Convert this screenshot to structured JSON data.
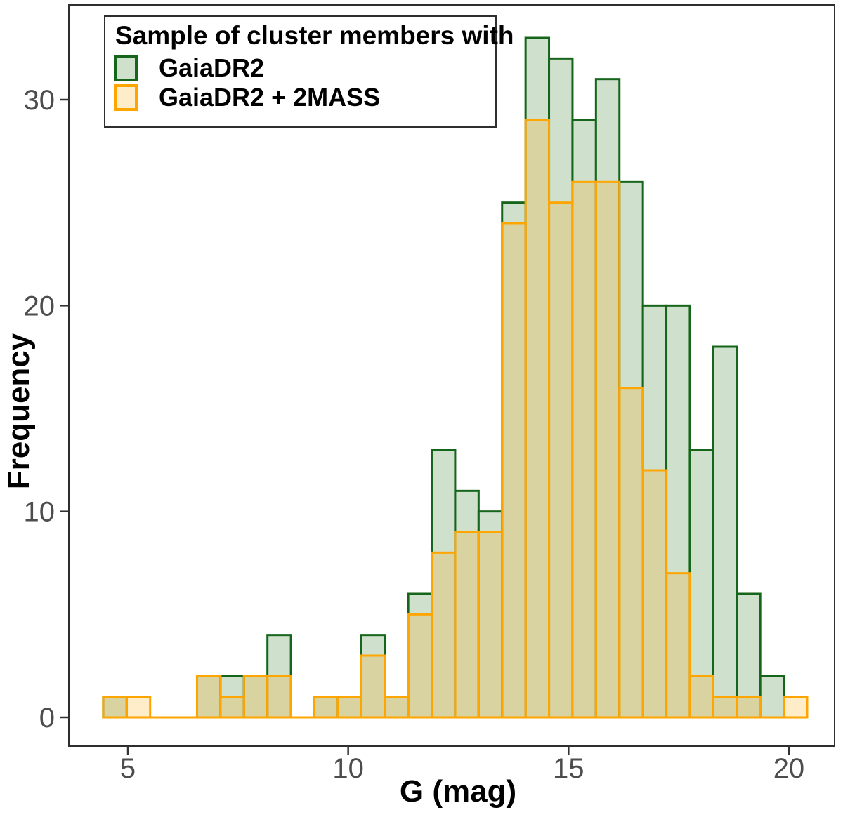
{
  "figure": {
    "legend": {
      "title": "Sample of cluster members with",
      "entries": [
        {
          "label": "GaiaDR2"
        },
        {
          "label": "GaiaDR2 + 2MASS"
        }
      ]
    },
    "x_axis": {
      "label": "G (mag)"
    },
    "y_axis": {
      "label": "Frequency"
    }
  },
  "chart_data": {
    "type": "histogram",
    "title": "",
    "xlabel": "G (mag)",
    "ylabel": "Frequency",
    "bin_start_mag": 4.44,
    "bin_width_mag": 0.5325,
    "n_bins": 30,
    "xlim": [
      4.0,
      21.0
    ],
    "ylim": [
      0,
      34.5
    ],
    "xticks": [
      5,
      10,
      15,
      20
    ],
    "yticks": [
      0,
      10,
      20,
      30
    ],
    "grid": false,
    "legend_position": "top-left",
    "legend_title": "Sample of cluster members with",
    "colors": {
      "green_fill": "#cfe0cd",
      "green_stroke": "#15651a",
      "orange_fill": "rgba(255,165,0,0.21)",
      "orange_stroke": "#ffa500",
      "axis_text": "#4d4d4d",
      "panel_border": "#2e2e2e"
    },
    "series": [
      {
        "name": "GaiaDR2",
        "values": [
          1,
          0,
          0,
          0,
          2,
          2,
          2,
          4,
          0,
          1,
          1,
          4,
          1,
          6,
          13,
          11,
          10,
          25,
          33,
          32,
          29,
          31,
          26,
          20,
          20,
          13,
          18,
          6,
          2,
          0
        ]
      },
      {
        "name": "GaiaDR2 + 2MASS",
        "values": [
          1,
          1,
          0,
          0,
          2,
          1,
          2,
          2,
          0,
          1,
          1,
          3,
          1,
          5,
          8,
          9,
          9,
          24,
          29,
          25,
          26,
          26,
          16,
          12,
          7,
          2,
          1,
          1,
          0,
          1
        ]
      }
    ]
  }
}
